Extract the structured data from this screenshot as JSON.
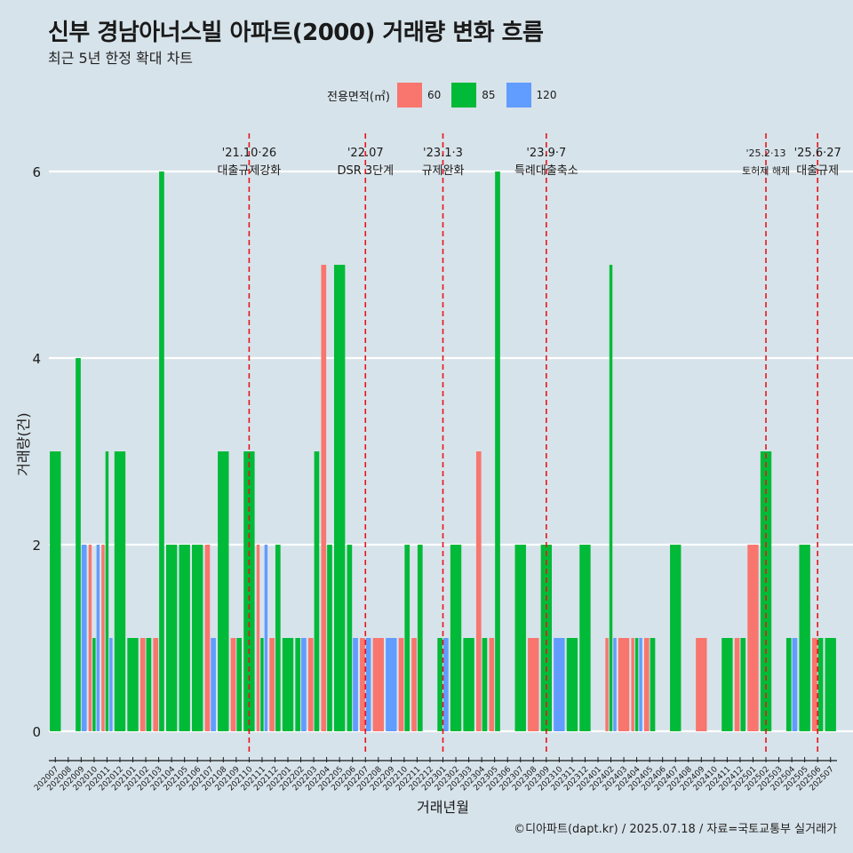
{
  "title": "신부 경남아너스빌 아파트(2000) 거래량 변화 흐름",
  "subtitle": "최근 5년 한정 확대 차트",
  "caption": "©디아파트(dapt.kr) / 2025.07.18 / 자료=국토교통부 실거래가",
  "legend": {
    "title": "전용면적(㎡)",
    "items": [
      {
        "label": "60",
        "color": "#f8766d"
      },
      {
        "label": "85",
        "color": "#00ba38"
      },
      {
        "label": "120",
        "color": "#619cff"
      }
    ]
  },
  "chart_data": {
    "type": "bar",
    "title": "신부 경남아너스빌 아파트(2000) 거래량 변화 흐름",
    "subtitle": "최근 5년 한정 확대 차트",
    "xlabel": "거래년월",
    "ylabel": "거래량(건)",
    "ylim": [
      0,
      6.6
    ],
    "yticks": [
      0,
      2,
      4,
      6
    ],
    "grid": "horizontal",
    "legend_position": "top",
    "bar_style": "dodge",
    "categories": [
      "202007",
      "202008",
      "202009",
      "202010",
      "202011",
      "202012",
      "202101",
      "202102",
      "202103",
      "202104",
      "202105",
      "202106",
      "202107",
      "202108",
      "202109",
      "202110",
      "202111",
      "202112",
      "202201",
      "202202",
      "202203",
      "202204",
      "202205",
      "202206",
      "202207",
      "202208",
      "202209",
      "202210",
      "202211",
      "202212",
      "202301",
      "202302",
      "202303",
      "202304",
      "202305",
      "202306",
      "202307",
      "202308",
      "202309",
      "202310",
      "202311",
      "202312",
      "202401",
      "202402",
      "202403",
      "202404",
      "202405",
      "202406",
      "202407",
      "202408",
      "202409",
      "202410",
      "202411",
      "202412",
      "202501",
      "202502",
      "202503",
      "202504",
      "202505",
      "202506",
      "202507"
    ],
    "bars": [
      {
        "month": "202007",
        "groups": [
          {
            "area": "85",
            "value": 3
          }
        ]
      },
      {
        "month": "202008",
        "groups": []
      },
      {
        "month": "202009",
        "groups": [
          {
            "area": "85",
            "value": 4
          },
          {
            "area": "120",
            "value": 2
          }
        ]
      },
      {
        "month": "202010",
        "groups": [
          {
            "area": "60",
            "value": 2
          },
          {
            "area": "85",
            "value": 1
          },
          {
            "area": "120",
            "value": 2
          }
        ]
      },
      {
        "month": "202011",
        "groups": [
          {
            "area": "60",
            "value": 2
          },
          {
            "area": "85",
            "value": 3
          },
          {
            "area": "120",
            "value": 1
          }
        ]
      },
      {
        "month": "202012",
        "groups": [
          {
            "area": "85",
            "value": 3
          }
        ]
      },
      {
        "month": "202101",
        "groups": [
          {
            "area": "85",
            "value": 1
          }
        ]
      },
      {
        "month": "202102",
        "groups": [
          {
            "area": "60",
            "value": 1
          },
          {
            "area": "85",
            "value": 1
          }
        ]
      },
      {
        "month": "202103",
        "groups": [
          {
            "area": "60",
            "value": 1
          },
          {
            "area": "85",
            "value": 6
          }
        ]
      },
      {
        "month": "202104",
        "groups": [
          {
            "area": "85",
            "value": 2
          }
        ]
      },
      {
        "month": "202105",
        "groups": [
          {
            "area": "85",
            "value": 2
          }
        ]
      },
      {
        "month": "202106",
        "groups": [
          {
            "area": "85",
            "value": 2
          }
        ]
      },
      {
        "month": "202107",
        "groups": [
          {
            "area": "60",
            "value": 2
          },
          {
            "area": "120",
            "value": 1
          }
        ]
      },
      {
        "month": "202108",
        "groups": [
          {
            "area": "85",
            "value": 3
          }
        ]
      },
      {
        "month": "202109",
        "groups": [
          {
            "area": "60",
            "value": 1
          },
          {
            "area": "85",
            "value": 1
          }
        ]
      },
      {
        "month": "202110",
        "groups": [
          {
            "area": "85",
            "value": 3
          }
        ]
      },
      {
        "month": "202111",
        "groups": [
          {
            "area": "60",
            "value": 2
          },
          {
            "area": "85",
            "value": 1
          },
          {
            "area": "120",
            "value": 2
          }
        ]
      },
      {
        "month": "202112",
        "groups": [
          {
            "area": "60",
            "value": 1
          },
          {
            "area": "85",
            "value": 2
          }
        ]
      },
      {
        "month": "202201",
        "groups": [
          {
            "area": "85",
            "value": 1
          }
        ]
      },
      {
        "month": "202202",
        "groups": [
          {
            "area": "85",
            "value": 1
          },
          {
            "area": "120",
            "value": 1
          }
        ]
      },
      {
        "month": "202203",
        "groups": [
          {
            "area": "60",
            "value": 1
          },
          {
            "area": "85",
            "value": 3
          }
        ]
      },
      {
        "month": "202204",
        "groups": [
          {
            "area": "60",
            "value": 5
          },
          {
            "area": "85",
            "value": 2
          }
        ]
      },
      {
        "month": "202205",
        "groups": [
          {
            "area": "85",
            "value": 5
          }
        ]
      },
      {
        "month": "202206",
        "groups": [
          {
            "area": "85",
            "value": 2
          },
          {
            "area": "120",
            "value": 1
          }
        ]
      },
      {
        "month": "202207",
        "groups": [
          {
            "area": "60",
            "value": 1
          },
          {
            "area": "120",
            "value": 1
          }
        ]
      },
      {
        "month": "202208",
        "groups": [
          {
            "area": "60",
            "value": 1
          }
        ]
      },
      {
        "month": "202209",
        "groups": [
          {
            "area": "120",
            "value": 1
          }
        ]
      },
      {
        "month": "202210",
        "groups": [
          {
            "area": "60",
            "value": 1
          },
          {
            "area": "85",
            "value": 2
          }
        ]
      },
      {
        "month": "202211",
        "groups": [
          {
            "area": "60",
            "value": 1
          },
          {
            "area": "85",
            "value": 2
          }
        ]
      },
      {
        "month": "202212",
        "groups": []
      },
      {
        "month": "202301",
        "groups": [
          {
            "area": "85",
            "value": 1
          },
          {
            "area": "120",
            "value": 1
          }
        ]
      },
      {
        "month": "202302",
        "groups": [
          {
            "area": "85",
            "value": 2
          }
        ]
      },
      {
        "month": "202303",
        "groups": [
          {
            "area": "85",
            "value": 1
          }
        ]
      },
      {
        "month": "202304",
        "groups": [
          {
            "area": "60",
            "value": 3
          },
          {
            "area": "85",
            "value": 1
          }
        ]
      },
      {
        "month": "202305",
        "groups": [
          {
            "area": "60",
            "value": 1
          },
          {
            "area": "85",
            "value": 6
          }
        ]
      },
      {
        "month": "202306",
        "groups": []
      },
      {
        "month": "202307",
        "groups": [
          {
            "area": "85",
            "value": 2
          }
        ]
      },
      {
        "month": "202308",
        "groups": [
          {
            "area": "60",
            "value": 1
          }
        ]
      },
      {
        "month": "202309",
        "groups": [
          {
            "area": "85",
            "value": 2
          }
        ]
      },
      {
        "month": "202310",
        "groups": [
          {
            "area": "120",
            "value": 1
          }
        ]
      },
      {
        "month": "202311",
        "groups": [
          {
            "area": "85",
            "value": 1
          }
        ]
      },
      {
        "month": "202312",
        "groups": [
          {
            "area": "85",
            "value": 2
          }
        ]
      },
      {
        "month": "202401",
        "groups": []
      },
      {
        "month": "202402",
        "groups": [
          {
            "area": "60",
            "value": 1
          },
          {
            "area": "85",
            "value": 5
          },
          {
            "area": "120",
            "value": 1
          }
        ]
      },
      {
        "month": "202403",
        "groups": [
          {
            "area": "60",
            "value": 1
          }
        ]
      },
      {
        "month": "202404",
        "groups": [
          {
            "area": "60",
            "value": 1
          },
          {
            "area": "85",
            "value": 1
          },
          {
            "area": "120",
            "value": 1
          }
        ]
      },
      {
        "month": "202405",
        "groups": [
          {
            "area": "60",
            "value": 1
          },
          {
            "area": "85",
            "value": 1
          }
        ]
      },
      {
        "month": "202406",
        "groups": []
      },
      {
        "month": "202407",
        "groups": [
          {
            "area": "85",
            "value": 2
          }
        ]
      },
      {
        "month": "202408",
        "groups": []
      },
      {
        "month": "202409",
        "groups": [
          {
            "area": "60",
            "value": 1
          }
        ]
      },
      {
        "month": "202410",
        "groups": []
      },
      {
        "month": "202411",
        "groups": [
          {
            "area": "85",
            "value": 1
          }
        ]
      },
      {
        "month": "202412",
        "groups": [
          {
            "area": "60",
            "value": 1
          },
          {
            "area": "85",
            "value": 1
          }
        ]
      },
      {
        "month": "202501",
        "groups": [
          {
            "area": "60",
            "value": 2
          }
        ]
      },
      {
        "month": "202502",
        "groups": [
          {
            "area": "85",
            "value": 3
          }
        ]
      },
      {
        "month": "202503",
        "groups": []
      },
      {
        "month": "202504",
        "groups": [
          {
            "area": "85",
            "value": 1
          },
          {
            "area": "120",
            "value": 1
          }
        ]
      },
      {
        "month": "202505",
        "groups": [
          {
            "area": "85",
            "value": 2
          }
        ]
      },
      {
        "month": "202506",
        "groups": [
          {
            "area": "60",
            "value": 1
          },
          {
            "area": "85",
            "value": 1
          }
        ]
      },
      {
        "month": "202507",
        "groups": [
          {
            "area": "85",
            "value": 1
          }
        ]
      }
    ],
    "events": [
      {
        "month": "202110",
        "date": "'21.10·26",
        "label": "대출규제강화"
      },
      {
        "month": "202207",
        "date": "'22.07",
        "label": "DSR 3단계"
      },
      {
        "month": "202301",
        "date": "'23.1·3",
        "label": "규제완화"
      },
      {
        "month": "202309",
        "date": "'23.9·7",
        "label": "특례대출축소"
      },
      {
        "month": "202502",
        "date": "'25.2·13",
        "label": "토허제 해제"
      },
      {
        "month": "202506",
        "date": "'25.6·27",
        "label": "대출규제"
      }
    ]
  }
}
